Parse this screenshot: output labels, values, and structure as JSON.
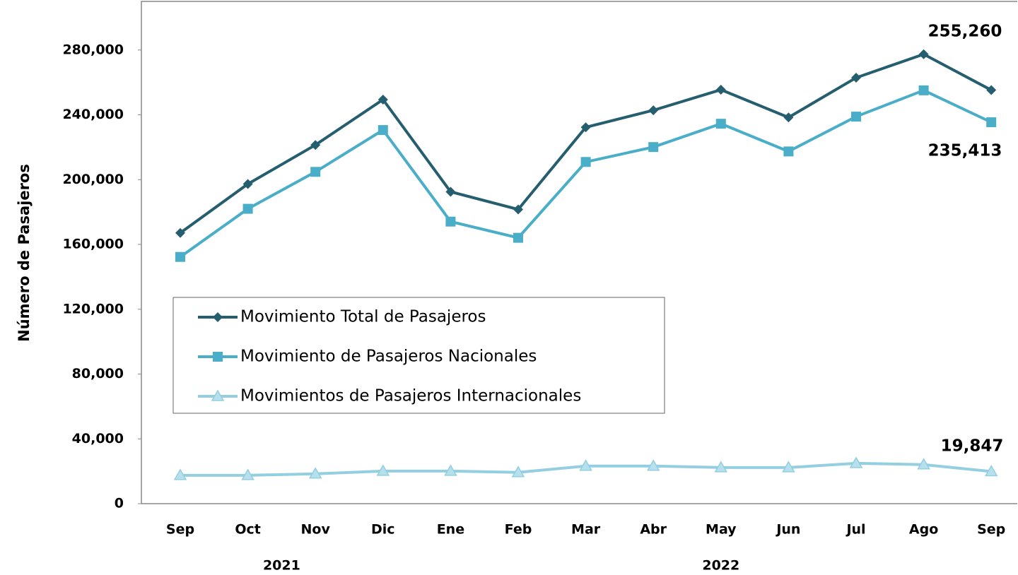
{
  "chart_data": {
    "type": "line",
    "y_label": "Número de Pasajeros",
    "categories": [
      "Sep",
      "Oct",
      "Nov",
      "Dic",
      "Ene",
      "Feb",
      "Mar",
      "Abr",
      "May",
      "Jun",
      "Jul",
      "Ago",
      "Sep"
    ],
    "x_groups": [
      {
        "label": "2021",
        "start": 0,
        "end": 3
      },
      {
        "label": "2022",
        "start": 4,
        "end": 12
      }
    ],
    "series": [
      {
        "name": "Movimiento Total de Pasajeros",
        "color": "#255e6e",
        "marker": "diamond",
        "values": [
          167100,
          197300,
          221400,
          249400,
          192500,
          181600,
          232300,
          242800,
          255500,
          238400,
          262900,
          277400,
          255260
        ],
        "value_labels": [
          null,
          null,
          null,
          null,
          null,
          null,
          null,
          null,
          null,
          null,
          null,
          null,
          "255,260"
        ]
      },
      {
        "name": "Movimiento de Pasajeros Nacionales",
        "color": "#4aaec8",
        "marker": "square",
        "values": [
          152300,
          182000,
          204800,
          230600,
          174100,
          164100,
          210900,
          220100,
          234500,
          217400,
          238900,
          255100,
          235413
        ],
        "value_labels": [
          null,
          null,
          null,
          null,
          null,
          null,
          null,
          null,
          null,
          null,
          null,
          null,
          "235,413"
        ]
      },
      {
        "name": "Movimientos de Pasajeros Internacionales",
        "color": "#93cfe0",
        "marker": "triangle",
        "values": [
          17500,
          17500,
          18400,
          20100,
          20100,
          19300,
          23200,
          23200,
          22300,
          22300,
          24900,
          24100,
          19847
        ],
        "value_labels": [
          null,
          null,
          null,
          null,
          null,
          null,
          null,
          null,
          null,
          null,
          null,
          null,
          "19,847"
        ]
      }
    ],
    "ylim": [
      0,
      310000
    ],
    "yticks": [
      0,
      {
        "value": 40000,
        "label": "40,000"
      },
      {
        "value": 80000,
        "label": "80,000"
      },
      {
        "value": 120000,
        "label": "120,000"
      },
      {
        "value": 160000,
        "label": "160,000"
      },
      {
        "value": 200000,
        "label": "200,000"
      },
      {
        "value": 240000,
        "label": "240,000"
      },
      {
        "value": 280000,
        "label": "280,000"
      }
    ],
    "grid": false,
    "legend": "center-left"
  }
}
